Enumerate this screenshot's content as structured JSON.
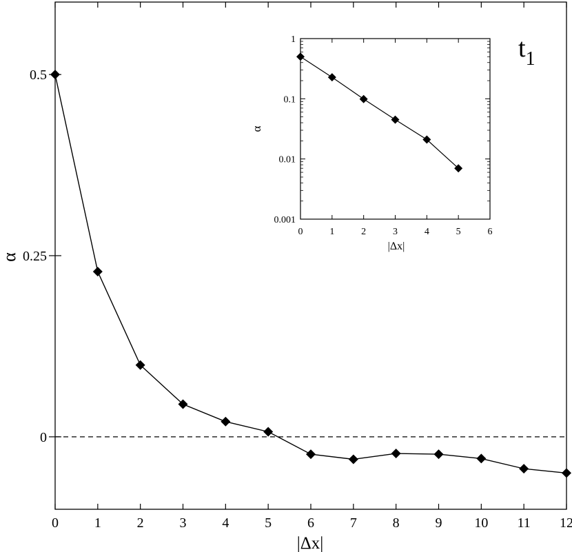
{
  "chart_data": [
    {
      "type": "line",
      "annotation": "t",
      "annotation_subscript": "1",
      "xlabel": "|Δx|",
      "ylabel": "α",
      "xlim": [
        0,
        12
      ],
      "ylim": [
        -0.1,
        0.6
      ],
      "x_ticks": [
        0,
        1,
        2,
        3,
        4,
        5,
        6,
        7,
        8,
        9,
        10,
        11,
        12
      ],
      "x_tick_labels": [
        "0",
        "1",
        "2",
        "3",
        "4",
        "5",
        "6",
        "7",
        "8",
        "9",
        "10",
        "11",
        "12"
      ],
      "y_ticks": [
        0,
        0.25,
        0.5
      ],
      "y_tick_labels": [
        "0",
        "0.25",
        "0.5"
      ],
      "reference_line": {
        "y": 0,
        "style": "dashed"
      },
      "marker": "diamond",
      "series": [
        {
          "x": [
            0,
            1,
            2,
            3,
            4,
            5,
            6,
            7,
            8,
            9,
            10,
            11,
            12
          ],
          "y": [
            0.5,
            0.228,
            0.099,
            0.045,
            0.021,
            0.007,
            -0.024,
            -0.031,
            -0.023,
            -0.024,
            -0.03,
            -0.044,
            -0.05
          ]
        }
      ]
    },
    {
      "type": "line",
      "inset": true,
      "xlabel": "|Δx|",
      "ylabel": "α",
      "yscale": "log",
      "xlim": [
        0,
        6
      ],
      "ylim": [
        0.001,
        1
      ],
      "x_ticks": [
        0,
        1,
        2,
        3,
        4,
        5,
        6
      ],
      "x_tick_labels": [
        "0",
        "1",
        "2",
        "3",
        "4",
        "5",
        "6"
      ],
      "y_ticks": [
        0.001,
        0.01,
        0.1,
        1
      ],
      "y_tick_labels": [
        "0.001",
        "0.01",
        "0.1",
        "1"
      ],
      "marker": "diamond",
      "series": [
        {
          "x": [
            0,
            1,
            2,
            3,
            4,
            5
          ],
          "y": [
            0.5,
            0.228,
            0.099,
            0.045,
            0.021,
            0.007
          ]
        }
      ]
    }
  ]
}
